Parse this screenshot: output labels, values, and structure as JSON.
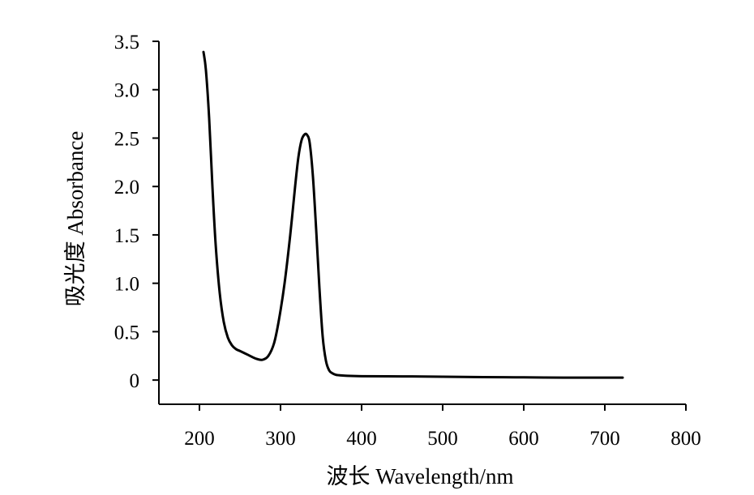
{
  "chart_data": {
    "type": "line",
    "title": "",
    "xlabel": "波长 Wavelength/nm",
    "ylabel": "吸光度 Absorbance",
    "xlim": [
      150,
      800
    ],
    "ylim": [
      -0.25,
      3.5
    ],
    "xticks": [
      200,
      300,
      400,
      500,
      600,
      700,
      800
    ],
    "yticks": [
      0,
      0.5,
      1.0,
      1.5,
      2.0,
      2.5,
      3.0,
      3.5
    ],
    "xtick_labels": [
      "200",
      "300",
      "400",
      "500",
      "600",
      "700",
      "800"
    ],
    "ytick_labels": [
      "0",
      "0.5",
      "1.0",
      "1.5",
      "2.0",
      "2.5",
      "3.0",
      "3.5"
    ],
    "grid": false,
    "legend": "none",
    "line_color": "#000000",
    "series": [
      {
        "x": [
          205,
          208,
          212,
          216,
          220,
          225,
          230,
          235,
          240,
          245,
          250,
          260,
          270,
          278,
          285,
          292,
          298,
          305,
          312,
          318,
          322,
          326,
          330,
          333,
          336,
          340,
          344,
          348,
          352,
          356,
          360,
          364,
          368,
          372,
          380,
          400,
          450,
          500,
          550,
          600,
          650,
          700,
          722
        ],
        "y": [
          3.39,
          3.2,
          2.7,
          2.0,
          1.4,
          0.9,
          0.6,
          0.44,
          0.36,
          0.32,
          0.3,
          0.26,
          0.22,
          0.21,
          0.25,
          0.38,
          0.62,
          1.0,
          1.5,
          2.0,
          2.3,
          2.48,
          2.54,
          2.53,
          2.45,
          2.1,
          1.55,
          0.95,
          0.45,
          0.2,
          0.1,
          0.07,
          0.055,
          0.05,
          0.045,
          0.04,
          0.038,
          0.035,
          0.03,
          0.028,
          0.025,
          0.025,
          0.025
        ]
      }
    ]
  }
}
